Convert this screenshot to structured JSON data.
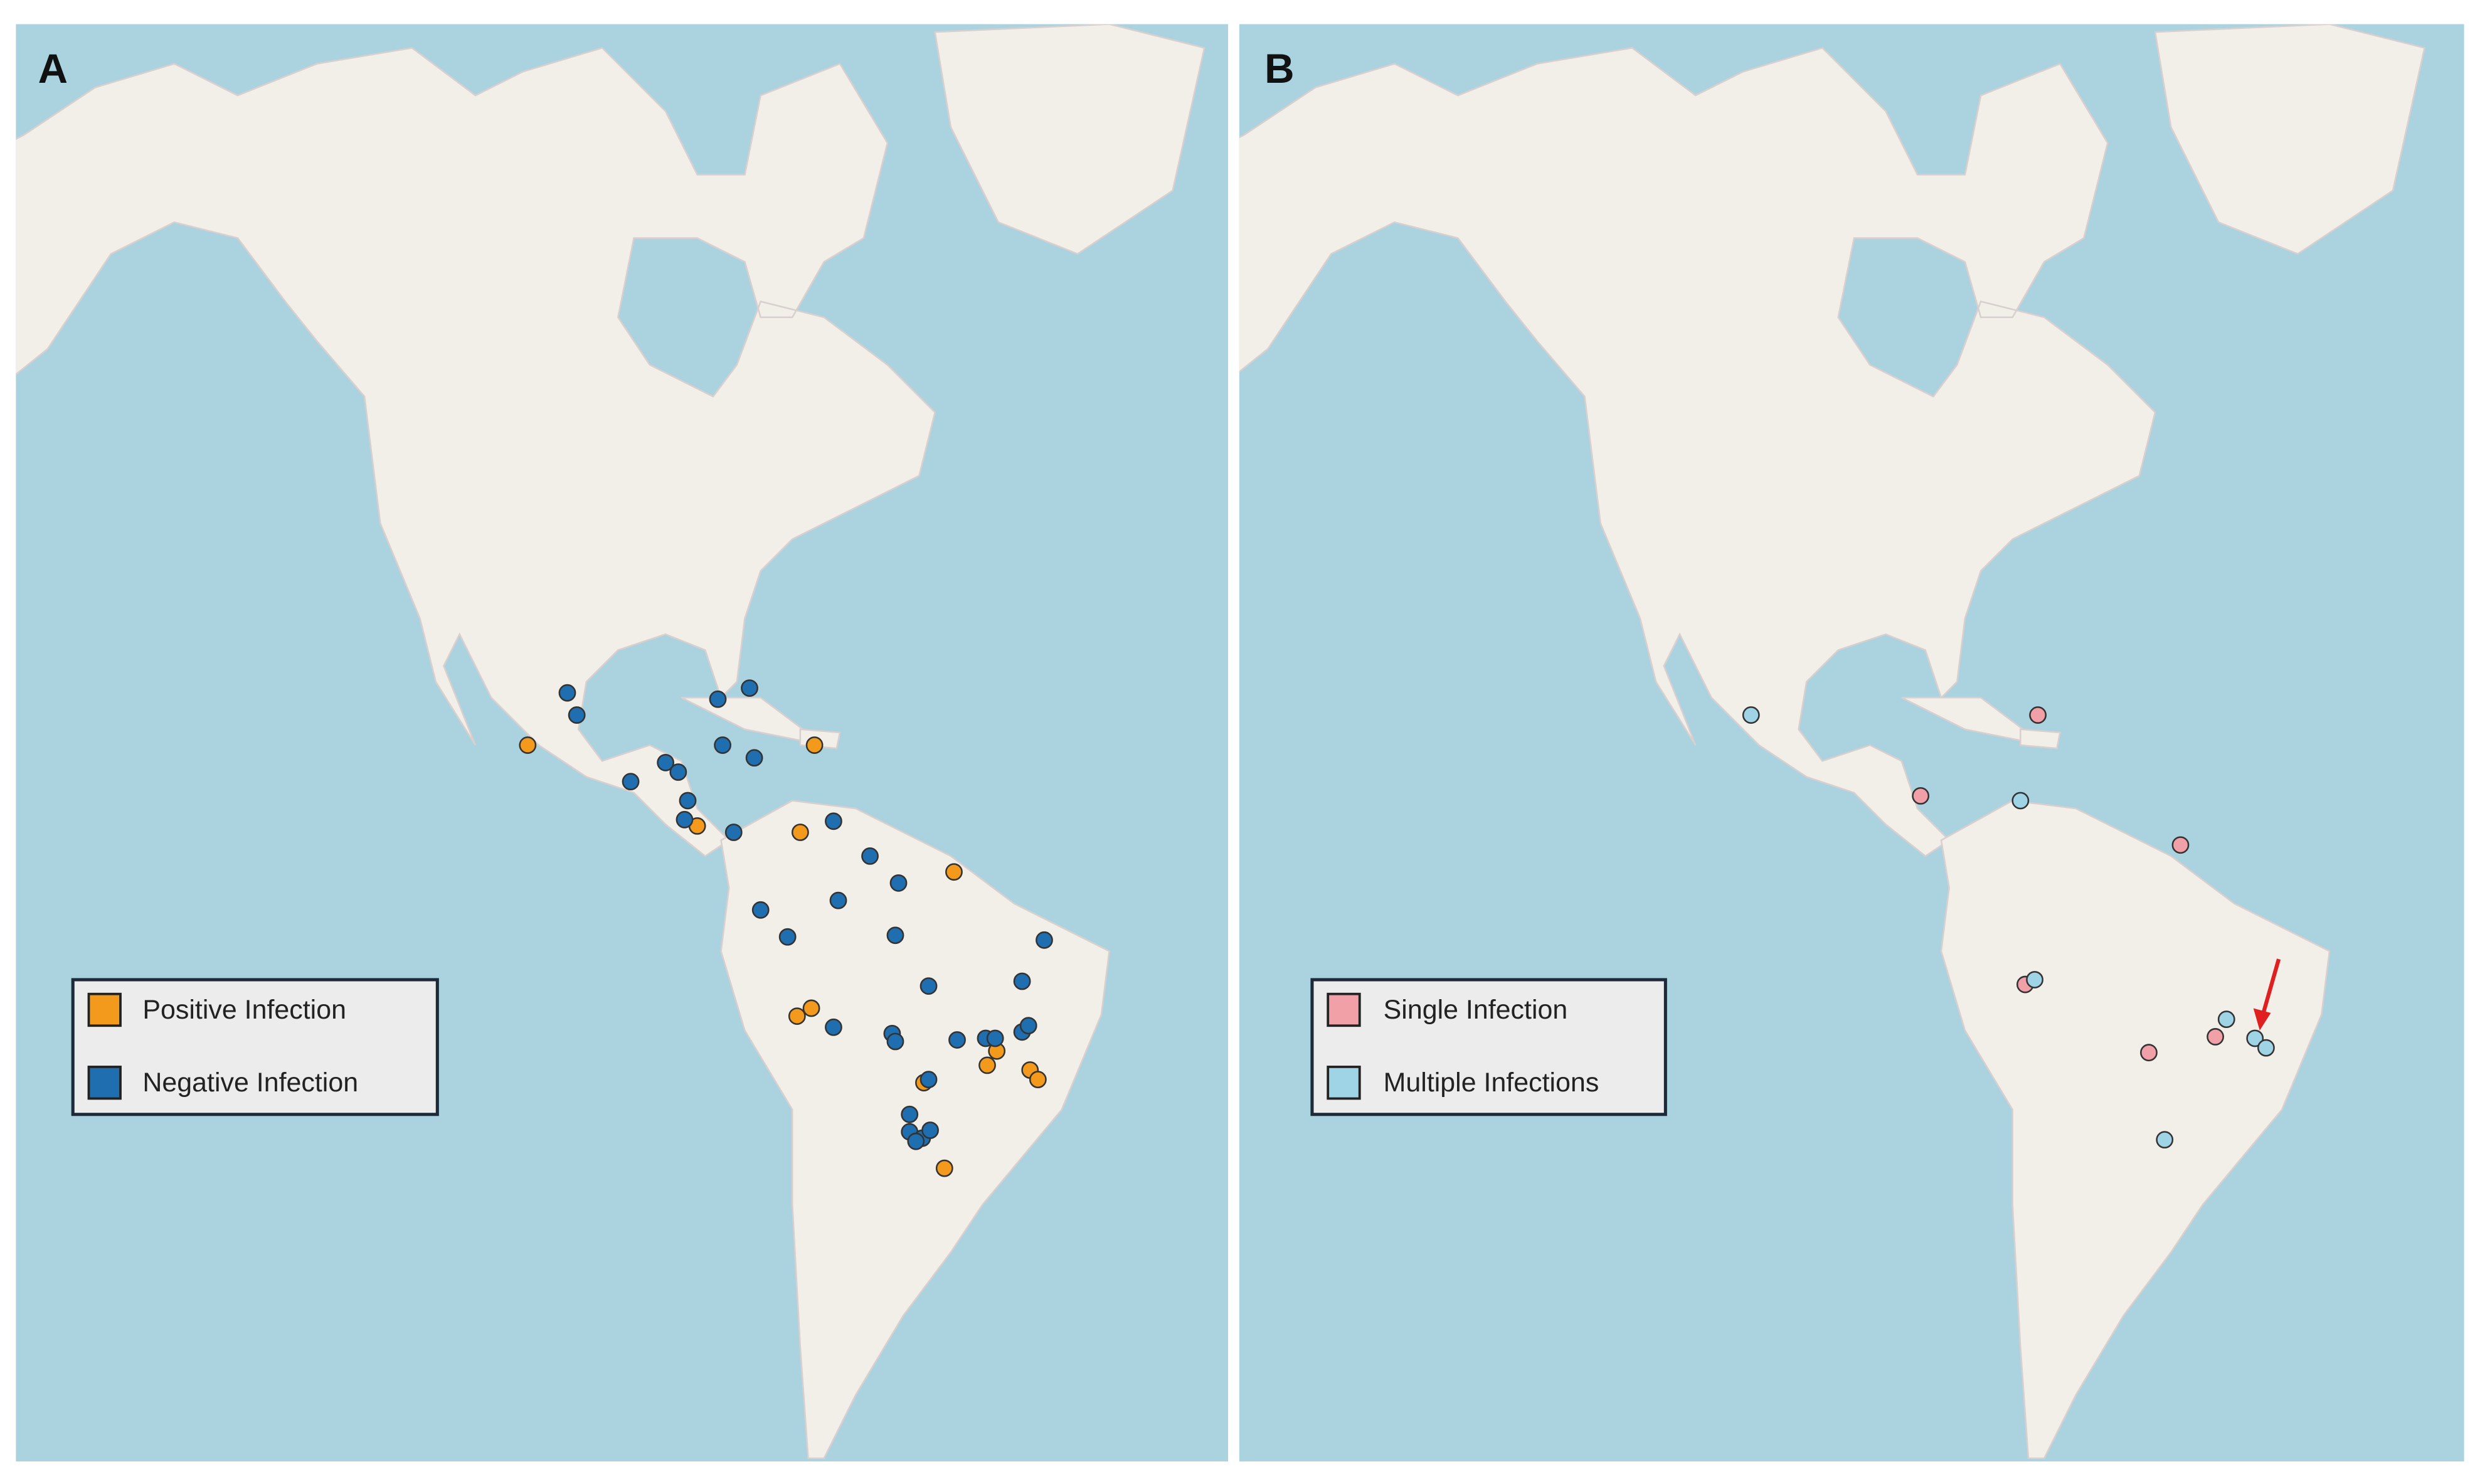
{
  "panels": [
    {
      "label": "A",
      "legend": [
        {
          "name": "Positive Infection",
          "color": "#f39a1d"
        },
        {
          "name": "Negative Infection",
          "color": "#1f6fb0"
        }
      ]
    },
    {
      "label": "B",
      "legend": [
        {
          "name": "Single Infection",
          "color": "#f2a0a8"
        },
        {
          "name": "Multiple Infections",
          "color": "#9fd3e6"
        }
      ]
    }
  ]
}
